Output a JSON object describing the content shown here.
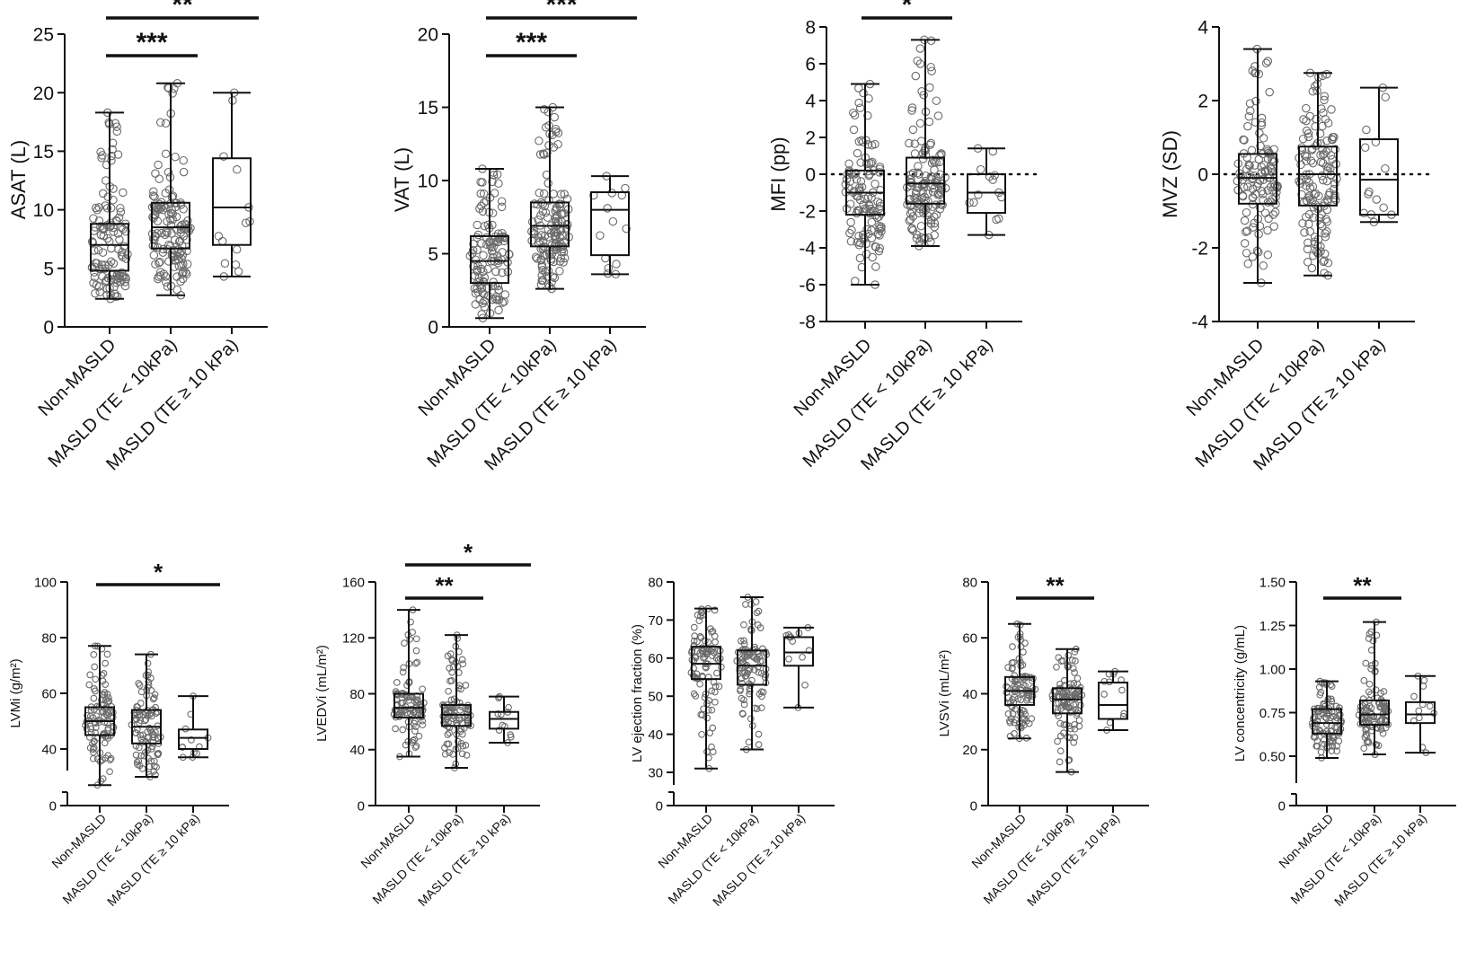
{
  "chart_data": [
    {
      "type": "box",
      "ylabel": "ASAT (L)",
      "ylim": [
        0,
        25
      ],
      "yticks": [
        0,
        5,
        10,
        15,
        20,
        25
      ],
      "categories": [
        "Non-MASLD",
        "MASLD (TE < 10kPa)",
        "MASLD (TE ≥ 10 kPa)"
      ],
      "boxes": [
        {
          "min": 2.4,
          "q1": 4.8,
          "median": 7.0,
          "q3": 8.8,
          "max": 18.3,
          "n": 120
        },
        {
          "min": 2.7,
          "q1": 6.7,
          "median": 8.5,
          "q3": 10.6,
          "max": 20.8,
          "n": 140
        },
        {
          "min": 4.3,
          "q1": 7.0,
          "median": 10.2,
          "q3": 14.4,
          "max": 20.0,
          "n": 14
        }
      ],
      "significance": [
        {
          "from": 0,
          "to": 1,
          "label": "***"
        },
        {
          "from": 0,
          "to": 2,
          "label": "**"
        }
      ]
    },
    {
      "type": "box",
      "ylabel": "VAT (L)",
      "ylim": [
        0,
        20
      ],
      "yticks": [
        0,
        5,
        10,
        15,
        20
      ],
      "categories": [
        "Non-MASLD",
        "MASLD (TE < 10kPa)",
        "MASLD (TE ≥ 10 kPa)"
      ],
      "boxes": [
        {
          "min": 0.6,
          "q1": 3.0,
          "median": 4.5,
          "q3": 6.2,
          "max": 10.8,
          "n": 120
        },
        {
          "min": 2.6,
          "q1": 5.5,
          "median": 6.9,
          "q3": 8.5,
          "max": 15.0,
          "n": 140
        },
        {
          "min": 3.6,
          "q1": 4.9,
          "median": 8.0,
          "q3": 9.2,
          "max": 10.3,
          "n": 14
        }
      ],
      "significance": [
        {
          "from": 0,
          "to": 1,
          "label": "***"
        },
        {
          "from": 0,
          "to": 2,
          "label": "***"
        }
      ]
    },
    {
      "type": "box",
      "ylabel": "MFI (pp)",
      "ylim": [
        -8,
        8
      ],
      "yticks": [
        -8,
        -6,
        -4,
        -2,
        0,
        2,
        4,
        6,
        8
      ],
      "zero_line": true,
      "categories": [
        "Non-MASLD",
        "MASLD (TE < 10kPa)",
        "MASLD (TE ≥ 10 kPa)"
      ],
      "boxes": [
        {
          "min": -6.0,
          "q1": -2.2,
          "median": -1.0,
          "q3": 0.2,
          "max": 4.9,
          "n": 120
        },
        {
          "min": -3.9,
          "q1": -1.6,
          "median": -0.5,
          "q3": 0.9,
          "max": 7.3,
          "n": 140
        },
        {
          "min": -3.3,
          "q1": -2.1,
          "median": -1.0,
          "q3": 0.0,
          "max": 1.4,
          "n": 14
        }
      ],
      "significance": [
        {
          "from": 0,
          "to": 1,
          "label": "*"
        }
      ]
    },
    {
      "type": "box",
      "ylabel": "MVZ (SD)",
      "ylim": [
        -4,
        4
      ],
      "yticks": [
        -4,
        -2,
        0,
        2,
        4
      ],
      "zero_line": true,
      "categories": [
        "Non-MASLD",
        "MASLD (TE < 10kPa)",
        "MASLD (TE ≥ 10 kPa)"
      ],
      "boxes": [
        {
          "min": -2.95,
          "q1": -0.8,
          "median": -0.1,
          "q3": 0.55,
          "max": 3.4,
          "n": 120
        },
        {
          "min": -2.75,
          "q1": -0.85,
          "median": 0.0,
          "q3": 0.75,
          "max": 2.75,
          "n": 140
        },
        {
          "min": -1.3,
          "q1": -1.1,
          "median": -0.15,
          "q3": 0.95,
          "max": 2.35,
          "n": 14
        }
      ],
      "significance": []
    },
    {
      "type": "box",
      "ylabel": "LVMi (g/m²)",
      "ylim": [
        0,
        100
      ],
      "yticks": [
        0,
        40,
        60,
        80,
        100
      ],
      "break": true,
      "categories": [
        "Non-MASLD",
        "MASLD (TE < 10kPa)",
        "MASLD (TE ≥ 10 kPa)"
      ],
      "boxes": [
        {
          "min": 27,
          "q1": 45,
          "median": 50,
          "q3": 55,
          "max": 77,
          "n": 100
        },
        {
          "min": 30,
          "q1": 42,
          "median": 48,
          "q3": 54,
          "max": 74,
          "n": 100
        },
        {
          "min": 37,
          "q1": 40,
          "median": 44,
          "q3": 47,
          "max": 59,
          "n": 12
        }
      ],
      "significance": [
        {
          "from": 0,
          "to": 2,
          "label": "*"
        }
      ]
    },
    {
      "type": "box",
      "ylabel": "LVEDVi (mL/m²)",
      "ylim": [
        0,
        160
      ],
      "yticks": [
        0,
        40,
        80,
        120,
        160
      ],
      "categories": [
        "Non-MASLD",
        "MASLD (TE < 10kPa)",
        "MASLD (TE ≥ 10 kPa)"
      ],
      "boxes": [
        {
          "min": 35,
          "q1": 63,
          "median": 70,
          "q3": 80,
          "max": 140,
          "n": 100
        },
        {
          "min": 27,
          "q1": 57,
          "median": 65,
          "q3": 72,
          "max": 122,
          "n": 100
        },
        {
          "min": 45,
          "q1": 55,
          "median": 62,
          "q3": 67,
          "max": 78,
          "n": 12
        }
      ],
      "significance": [
        {
          "from": 0,
          "to": 1,
          "label": "**"
        },
        {
          "from": 0,
          "to": 2,
          "label": "*"
        }
      ]
    },
    {
      "type": "box",
      "ylabel": "LV ejection fraction (%)",
      "ylim": [
        0,
        80
      ],
      "yticks": [
        0,
        30,
        40,
        50,
        60,
        70,
        80
      ],
      "break": true,
      "categories": [
        "Non-MASLD",
        "MASLD (TE < 10kPa)",
        "MASLD (TE ≥ 10 kPa)"
      ],
      "boxes": [
        {
          "min": 31,
          "q1": 54.5,
          "median": 58.5,
          "q3": 63,
          "max": 73,
          "n": 100
        },
        {
          "min": 36,
          "q1": 53,
          "median": 58,
          "q3": 62,
          "max": 76,
          "n": 100
        },
        {
          "min": 47,
          "q1": 58,
          "median": 61.5,
          "q3": 65.5,
          "max": 68,
          "n": 12
        }
      ],
      "significance": []
    },
    {
      "type": "box",
      "ylabel": "LVSVi (mL/m²)",
      "ylim": [
        0,
        80
      ],
      "yticks": [
        0,
        20,
        40,
        60,
        80
      ],
      "categories": [
        "Non-MASLD",
        "MASLD (TE < 10kPa)",
        "MASLD (TE ≥ 10 kPa)"
      ],
      "boxes": [
        {
          "min": 24,
          "q1": 36,
          "median": 41,
          "q3": 46,
          "max": 65,
          "n": 100
        },
        {
          "min": 12,
          "q1": 33,
          "median": 38,
          "q3": 42,
          "max": 56,
          "n": 100
        },
        {
          "min": 27,
          "q1": 31,
          "median": 36,
          "q3": 44,
          "max": 48,
          "n": 12
        }
      ],
      "significance": [
        {
          "from": 0,
          "to": 1,
          "label": "**"
        }
      ]
    },
    {
      "type": "box",
      "ylabel": "LV concentricity (g/mL)",
      "ylim": [
        0,
        1.5
      ],
      "yticks": [
        0,
        0.5,
        0.75,
        1.0,
        1.25,
        1.5
      ],
      "yticklabels": [
        "0",
        "0.50",
        "0.75",
        "1.00",
        "1.25",
        "1.50"
      ],
      "break": true,
      "categories": [
        "Non-MASLD",
        "MASLD (TE < 10kPa)",
        "MASLD (TE ≥ 10 kPa)"
      ],
      "boxes": [
        {
          "min": 0.49,
          "q1": 0.63,
          "median": 0.69,
          "q3": 0.77,
          "max": 0.93,
          "n": 100
        },
        {
          "min": 0.51,
          "q1": 0.68,
          "median": 0.74,
          "q3": 0.82,
          "max": 1.27,
          "n": 100
        },
        {
          "min": 0.52,
          "q1": 0.69,
          "median": 0.74,
          "q3": 0.81,
          "max": 0.96,
          "n": 12
        }
      ],
      "significance": [
        {
          "from": 0,
          "to": 1,
          "label": "**"
        }
      ]
    }
  ]
}
